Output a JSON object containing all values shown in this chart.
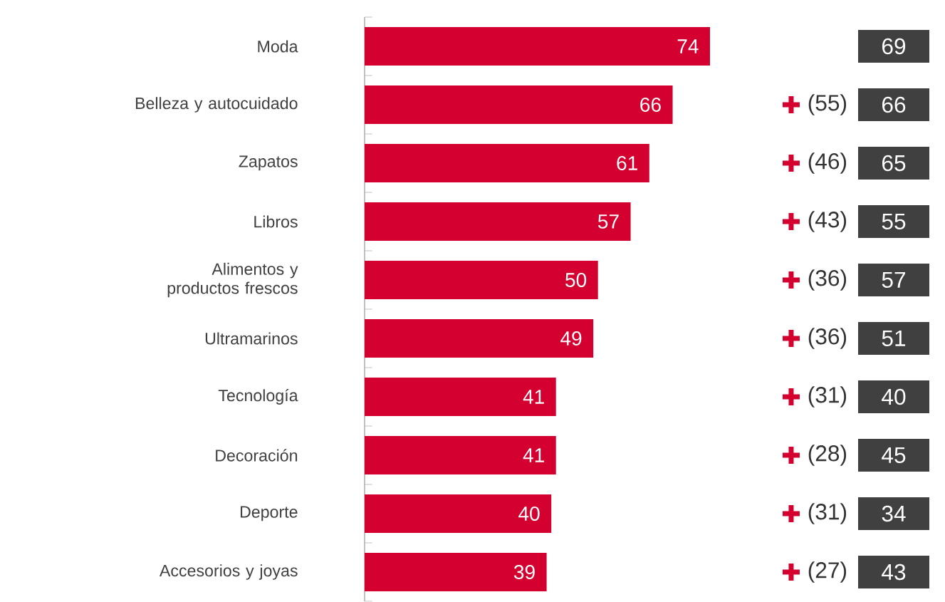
{
  "chart_data": {
    "type": "bar",
    "orientation": "horizontal",
    "relative": false,
    "data_labels": true,
    "color": "#d4002f",
    "categories": [
      "Moda",
      "Belleza y autocuidado",
      "Zapatos",
      "Libros",
      "Alimentos y productos frescos",
      "Ultramarinos",
      "Tecnología",
      "Decoración",
      "Deporte",
      "Accesorios y joyas"
    ],
    "values": [
      74,
      66,
      61,
      57,
      50,
      49,
      41,
      41,
      40,
      39
    ],
    "annotations": [
      "69",
      "66",
      "65",
      "55",
      "57",
      "51",
      "40",
      "45",
      "34",
      "43",
      "(55)",
      "(46)",
      "(43)",
      "(36)",
      "(36)",
      "(31)",
      "(28)",
      "(31)",
      "(27)"
    ]
  }
}
